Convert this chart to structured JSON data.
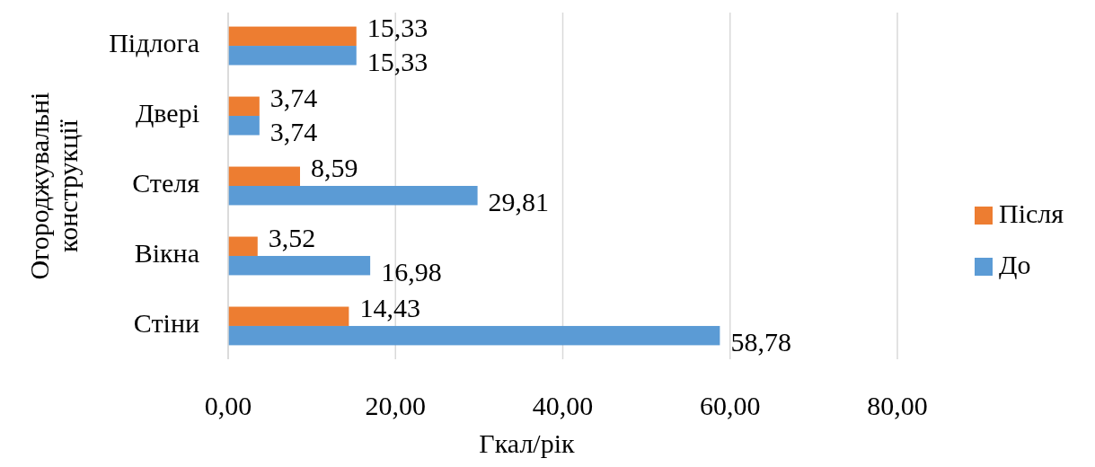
{
  "chart_data": {
    "type": "bar",
    "orientation": "horizontal",
    "xlabel": "Гкал/рік",
    "ylabel": "Огороджувальні конструкції",
    "categories": [
      "Підлога",
      "Двері",
      "Стеля",
      "Вікна",
      "Стіни"
    ],
    "series": [
      {
        "name": "Після",
        "color": "#ed7d31",
        "values": [
          15.33,
          3.74,
          8.59,
          3.52,
          14.43
        ],
        "value_labels": [
          "15,33",
          "3,74",
          "8,59",
          "3,52",
          "14,43"
        ]
      },
      {
        "name": "До",
        "color": "#5b9bd5",
        "values": [
          15.33,
          3.74,
          29.81,
          16.98,
          58.78
        ],
        "value_labels": [
          "15,33",
          "3,74",
          "29,81",
          "16,98",
          "58,78"
        ]
      }
    ],
    "xlim": [
      0,
      80
    ],
    "xticks": [
      {
        "value": 0,
        "label": "0,00"
      },
      {
        "value": 20,
        "label": "20,00"
      },
      {
        "value": 40,
        "label": "40,00"
      },
      {
        "value": 60,
        "label": "60,00"
      },
      {
        "value": 80,
        "label": "80,00"
      }
    ],
    "grid": "x",
    "legend": "right"
  }
}
